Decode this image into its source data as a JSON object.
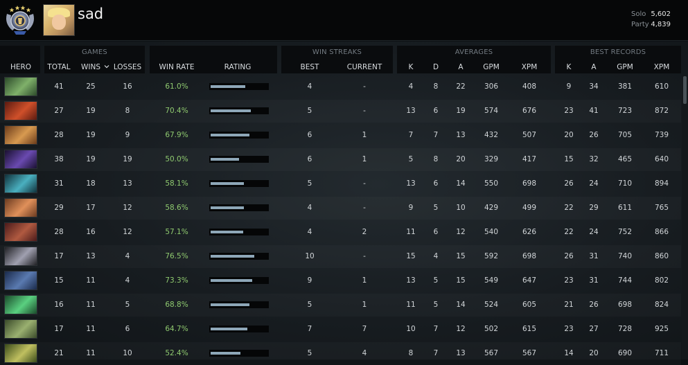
{
  "profile": {
    "name": "sad",
    "solo_label": "Solo",
    "solo_mmr": "5,602",
    "party_label": "Party",
    "party_mmr": "4,839"
  },
  "groups": {
    "games": "GAMES",
    "win_streaks": "WIN STREAKS",
    "averages": "AVERAGES",
    "best_records": "BEST RECORDS"
  },
  "columns": {
    "hero": "HERO",
    "total": "TOTAL",
    "wins": "WINS",
    "losses": "LOSSES",
    "win_rate": "WIN RATE",
    "rating": "RATING",
    "best": "BEST",
    "current": "CURRENT",
    "k": "K",
    "d": "D",
    "a": "A",
    "gpm": "GPM",
    "xpm": "XPM",
    "best_k": "K",
    "best_a": "A",
    "best_gpm": "GPM",
    "best_xpm": "XPM"
  },
  "rows": [
    {
      "total": "41",
      "wins": "25",
      "losses": "16",
      "win_rate": "61.0%",
      "rating": 0.61,
      "best": "4",
      "current": "-",
      "k": "4",
      "d": "8",
      "a": "22",
      "gpm": "306",
      "xpm": "408",
      "best_k": "9",
      "best_a": "34",
      "best_gpm": "381",
      "best_xpm": "610",
      "portrait": [
        "#2c4a2a",
        "#7fb06a"
      ]
    },
    {
      "total": "27",
      "wins": "19",
      "losses": "8",
      "win_rate": "70.4%",
      "rating": 0.704,
      "best": "5",
      "current": "-",
      "k": "13",
      "d": "6",
      "a": "19",
      "gpm": "574",
      "xpm": "676",
      "best_k": "23",
      "best_a": "41",
      "best_gpm": "723",
      "best_xpm": "872",
      "portrait": [
        "#5a1a10",
        "#d0502a"
      ]
    },
    {
      "total": "28",
      "wins": "19",
      "losses": "9",
      "win_rate": "67.9%",
      "rating": 0.679,
      "best": "6",
      "current": "1",
      "k": "7",
      "d": "7",
      "a": "13",
      "gpm": "432",
      "xpm": "507",
      "best_k": "20",
      "best_a": "26",
      "best_gpm": "705",
      "best_xpm": "739",
      "portrait": [
        "#6a3a1a",
        "#d89a50"
      ]
    },
    {
      "total": "38",
      "wins": "19",
      "losses": "19",
      "win_rate": "50.0%",
      "rating": 0.5,
      "best": "6",
      "current": "1",
      "k": "5",
      "d": "8",
      "a": "20",
      "gpm": "329",
      "xpm": "417",
      "best_k": "15",
      "best_a": "32",
      "best_gpm": "465",
      "best_xpm": "640",
      "portrait": [
        "#1a1030",
        "#6a4ab0"
      ]
    },
    {
      "total": "31",
      "wins": "18",
      "losses": "13",
      "win_rate": "58.1%",
      "rating": 0.581,
      "best": "5",
      "current": "-",
      "k": "13",
      "d": "6",
      "a": "14",
      "gpm": "550",
      "xpm": "698",
      "best_k": "26",
      "best_a": "24",
      "best_gpm": "710",
      "best_xpm": "894",
      "portrait": [
        "#10303a",
        "#4ab0c0"
      ]
    },
    {
      "total": "29",
      "wins": "17",
      "losses": "12",
      "win_rate": "58.6%",
      "rating": 0.586,
      "best": "4",
      "current": "-",
      "k": "9",
      "d": "5",
      "a": "10",
      "gpm": "429",
      "xpm": "499",
      "best_k": "22",
      "best_a": "29",
      "best_gpm": "611",
      "best_xpm": "765",
      "portrait": [
        "#6a3a20",
        "#e0905a"
      ]
    },
    {
      "total": "28",
      "wins": "16",
      "losses": "12",
      "win_rate": "57.1%",
      "rating": 0.571,
      "best": "4",
      "current": "2",
      "k": "11",
      "d": "6",
      "a": "12",
      "gpm": "540",
      "xpm": "626",
      "best_k": "22",
      "best_a": "24",
      "best_gpm": "752",
      "best_xpm": "866",
      "portrait": [
        "#4a1a1a",
        "#b05a40"
      ]
    },
    {
      "total": "17",
      "wins": "13",
      "losses": "4",
      "win_rate": "76.5%",
      "rating": 0.765,
      "best": "10",
      "current": "-",
      "k": "15",
      "d": "4",
      "a": "15",
      "gpm": "592",
      "xpm": "698",
      "best_k": "26",
      "best_a": "31",
      "best_gpm": "740",
      "best_xpm": "860",
      "portrait": [
        "#202024",
        "#a0a0b0"
      ]
    },
    {
      "total": "15",
      "wins": "11",
      "losses": "4",
      "win_rate": "73.3%",
      "rating": 0.733,
      "best": "9",
      "current": "1",
      "k": "13",
      "d": "5",
      "a": "15",
      "gpm": "549",
      "xpm": "647",
      "best_k": "23",
      "best_a": "31",
      "best_gpm": "744",
      "best_xpm": "802",
      "portrait": [
        "#1a2a4a",
        "#5a7ab0"
      ]
    },
    {
      "total": "16",
      "wins": "11",
      "losses": "5",
      "win_rate": "68.8%",
      "rating": 0.688,
      "best": "5",
      "current": "1",
      "k": "11",
      "d": "5",
      "a": "14",
      "gpm": "524",
      "xpm": "605",
      "best_k": "21",
      "best_a": "26",
      "best_gpm": "698",
      "best_xpm": "824",
      "portrait": [
        "#1a4a2a",
        "#5ad080"
      ]
    },
    {
      "total": "17",
      "wins": "11",
      "losses": "6",
      "win_rate": "64.7%",
      "rating": 0.647,
      "best": "7",
      "current": "7",
      "k": "10",
      "d": "7",
      "a": "12",
      "gpm": "502",
      "xpm": "615",
      "best_k": "23",
      "best_a": "27",
      "best_gpm": "728",
      "best_xpm": "925",
      "portrait": [
        "#3a4a2a",
        "#9ab070"
      ]
    },
    {
      "total": "21",
      "wins": "11",
      "losses": "10",
      "win_rate": "52.4%",
      "rating": 0.524,
      "best": "5",
      "current": "4",
      "k": "8",
      "d": "7",
      "a": "13",
      "gpm": "567",
      "xpm": "567",
      "best_k": "14",
      "best_a": "20",
      "best_gpm": "690",
      "best_xpm": "711",
      "portrait": [
        "#3a4a1a",
        "#c0c060"
      ]
    }
  ]
}
